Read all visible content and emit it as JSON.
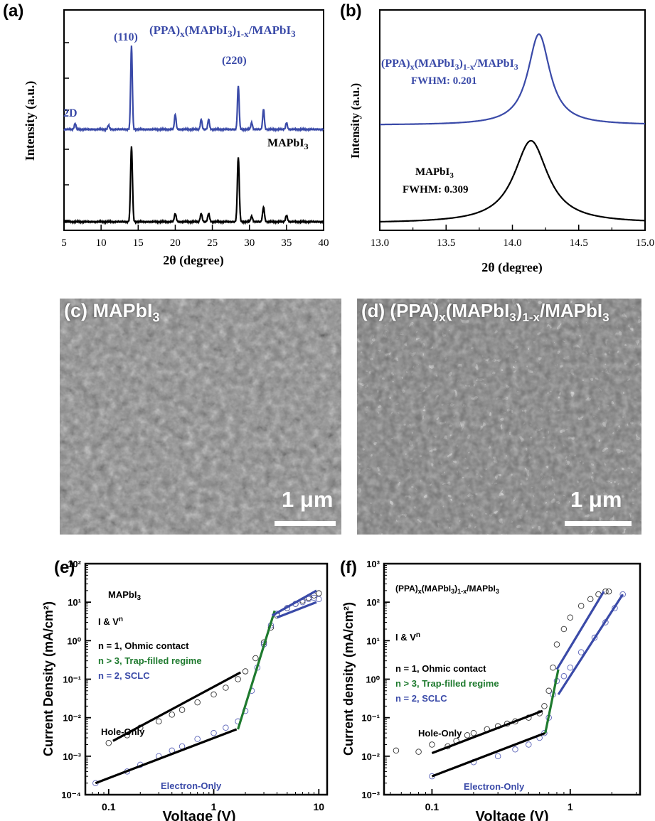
{
  "panels": {
    "a": {
      "label": "(a)",
      "chart_data": {
        "type": "line",
        "xlabel": "2θ (degree)",
        "ylabel": "Intensity (a.u.)",
        "xlim": [
          5,
          40
        ],
        "xticks": [
          "5",
          "10",
          "15",
          "20",
          "25",
          "30",
          "35",
          "40"
        ],
        "series": [
          {
            "name": "(PPA)x(MAPbI3)1-x/MAPbI3",
            "color": "#3a4aa8",
            "peaks": [
              [
                6.5,
                0.07
              ],
              [
                11,
                0.05
              ],
              [
                14.1,
                1.0
              ],
              [
                20,
                0.18
              ],
              [
                23.5,
                0.12
              ],
              [
                24.5,
                0.12
              ],
              [
                28.5,
                0.52
              ],
              [
                30.3,
                0.08
              ],
              [
                31.9,
                0.24
              ],
              [
                35,
                0.08
              ]
            ]
          },
          {
            "name": "MAPbI3",
            "color": "#000000",
            "peaks": [
              [
                14.1,
                0.83
              ],
              [
                20,
                0.09
              ],
              [
                23.5,
                0.09
              ],
              [
                24.5,
                0.09
              ],
              [
                28.5,
                0.71
              ],
              [
                30.3,
                0.06
              ],
              [
                31.9,
                0.16
              ],
              [
                35,
                0.07
              ]
            ]
          }
        ],
        "annotations": [
          "(110)",
          "(220)",
          "2D"
        ]
      }
    },
    "b": {
      "label": "(b)",
      "chart_data": {
        "type": "line",
        "xlabel": "2θ (degree)",
        "ylabel": "Intensity (a.u.)",
        "xlim": [
          13.0,
          15.0
        ],
        "xticks": [
          "13.0",
          "13.5",
          "14.0",
          "14.5",
          "15.0"
        ],
        "series": [
          {
            "name": "(PPA)x(MAPbI3)1-x/MAPbI3",
            "color": "#3a4aa8",
            "center": 14.2,
            "fwhm": 0.201,
            "fwhm_label": "FWHM: 0.201"
          },
          {
            "name": "MAPbI3",
            "color": "#000000",
            "center": 14.14,
            "fwhm": 0.309,
            "fwhm_label": "FWHM: 0.309"
          }
        ]
      }
    },
    "c": {
      "label": "(c)",
      "title": "MAPbI3",
      "scale": "1 μm"
    },
    "d": {
      "label": "(d)",
      "title": "(PPA)x(MAPbI3)1-x/MAPbI3",
      "scale": "1 μm"
    },
    "e": {
      "label": "(e)",
      "chart_data": {
        "type": "scatter",
        "xscale": "log",
        "yscale": "log",
        "xlabel": "Voltage (V)",
        "ylabel": "Current Density (mA/cm²)",
        "xlim": [
          0.06,
          12
        ],
        "ylim": [
          0.0001,
          100
        ],
        "xticks": [
          "0.1",
          "1",
          "10"
        ],
        "yticks": [
          "10⁻⁴",
          "10⁻³",
          "10⁻²",
          "10⁻¹",
          "10⁰",
          "10¹",
          "10²"
        ],
        "legend": [
          "MAPbI3",
          "I & Vⁿ",
          "n = 1, Ohmic contact",
          "n > 3, Trap-filled regime",
          "n = 2, SCLC"
        ],
        "series": [
          {
            "name": "Hole-Only",
            "color": "#000000",
            "x": [
              0.1,
              0.15,
              0.2,
              0.3,
              0.4,
              0.5,
              0.7,
              1.0,
              1.3,
              1.7,
              2.0,
              2.5,
              3.0,
              3.5,
              4.0,
              5,
              6,
              7,
              8,
              9,
              10
            ],
            "y": [
              0.0022,
              0.0035,
              0.0055,
              0.008,
              0.012,
              0.016,
              0.025,
              0.04,
              0.06,
              0.1,
              0.16,
              0.35,
              0.9,
              2.2,
              4.5,
              7,
              9,
              11,
              13,
              15,
              17
            ]
          },
          {
            "name": "Electron-Only",
            "color": "#3a4aa8",
            "x": [
              0.075,
              0.15,
              0.2,
              0.3,
              0.4,
              0.5,
              0.7,
              1.0,
              1.3,
              1.7,
              2.0,
              2.3,
              2.6,
              3.0,
              3.5,
              4.0,
              5,
              6,
              7,
              8,
              9,
              10
            ],
            "y": [
              0.0002,
              0.0004,
              0.0006,
              0.001,
              0.0014,
              0.0018,
              0.0028,
              0.004,
              0.0055,
              0.008,
              0.015,
              0.05,
              0.2,
              0.8,
              2.5,
              5,
              7,
              9,
              10,
              12,
              13,
              12
            ]
          }
        ]
      }
    },
    "f": {
      "label": "(f)",
      "chart_data": {
        "type": "scatter",
        "xscale": "log",
        "yscale": "log",
        "xlabel": "Voltage (V)",
        "ylabel": "Current density (mA/cm²)",
        "xlim": [
          0.045,
          3.2
        ],
        "ylim": [
          0.001,
          1000
        ],
        "xticks": [
          "0.1",
          "1"
        ],
        "yticks": [
          "10⁻³",
          "10⁻²",
          "10⁻¹",
          "10⁰",
          "10¹",
          "10²",
          "10³"
        ],
        "legend": [
          "(PPA)x(MAPbI3)1-x/MAPbI3",
          "I & Vⁿ",
          "n = 1, Ohmic contact",
          "n > 3, Trap-filled regime",
          "n = 2, SCLC"
        ],
        "series": [
          {
            "name": "Hole-Only",
            "color": "#000000",
            "x": [
              0.055,
              0.08,
              0.1,
              0.13,
              0.15,
              0.18,
              0.2,
              0.25,
              0.3,
              0.35,
              0.4,
              0.5,
              0.6,
              0.65,
              0.7,
              0.75,
              0.8,
              0.9,
              1.0,
              1.2,
              1.4,
              1.6,
              1.8,
              1.9
            ],
            "y": [
              0.014,
              0.013,
              0.02,
              0.018,
              0.025,
              0.035,
              0.04,
              0.05,
              0.06,
              0.07,
              0.08,
              0.1,
              0.13,
              0.2,
              0.5,
              2,
              8,
              20,
              40,
              80,
              120,
              160,
              190,
              190
            ]
          },
          {
            "name": "Electron-Only",
            "color": "#3a4aa8",
            "x": [
              0.1,
              0.2,
              0.3,
              0.4,
              0.5,
              0.6,
              0.65,
              0.7,
              0.75,
              0.8,
              0.9,
              1.0,
              1.2,
              1.5,
              1.8,
              2.1,
              2.4
            ],
            "y": [
              0.003,
              0.007,
              0.01,
              0.015,
              0.02,
              0.03,
              0.04,
              0.1,
              0.4,
              0.9,
              1.2,
              2,
              5,
              12,
              30,
              70,
              160
            ]
          }
        ]
      }
    }
  }
}
